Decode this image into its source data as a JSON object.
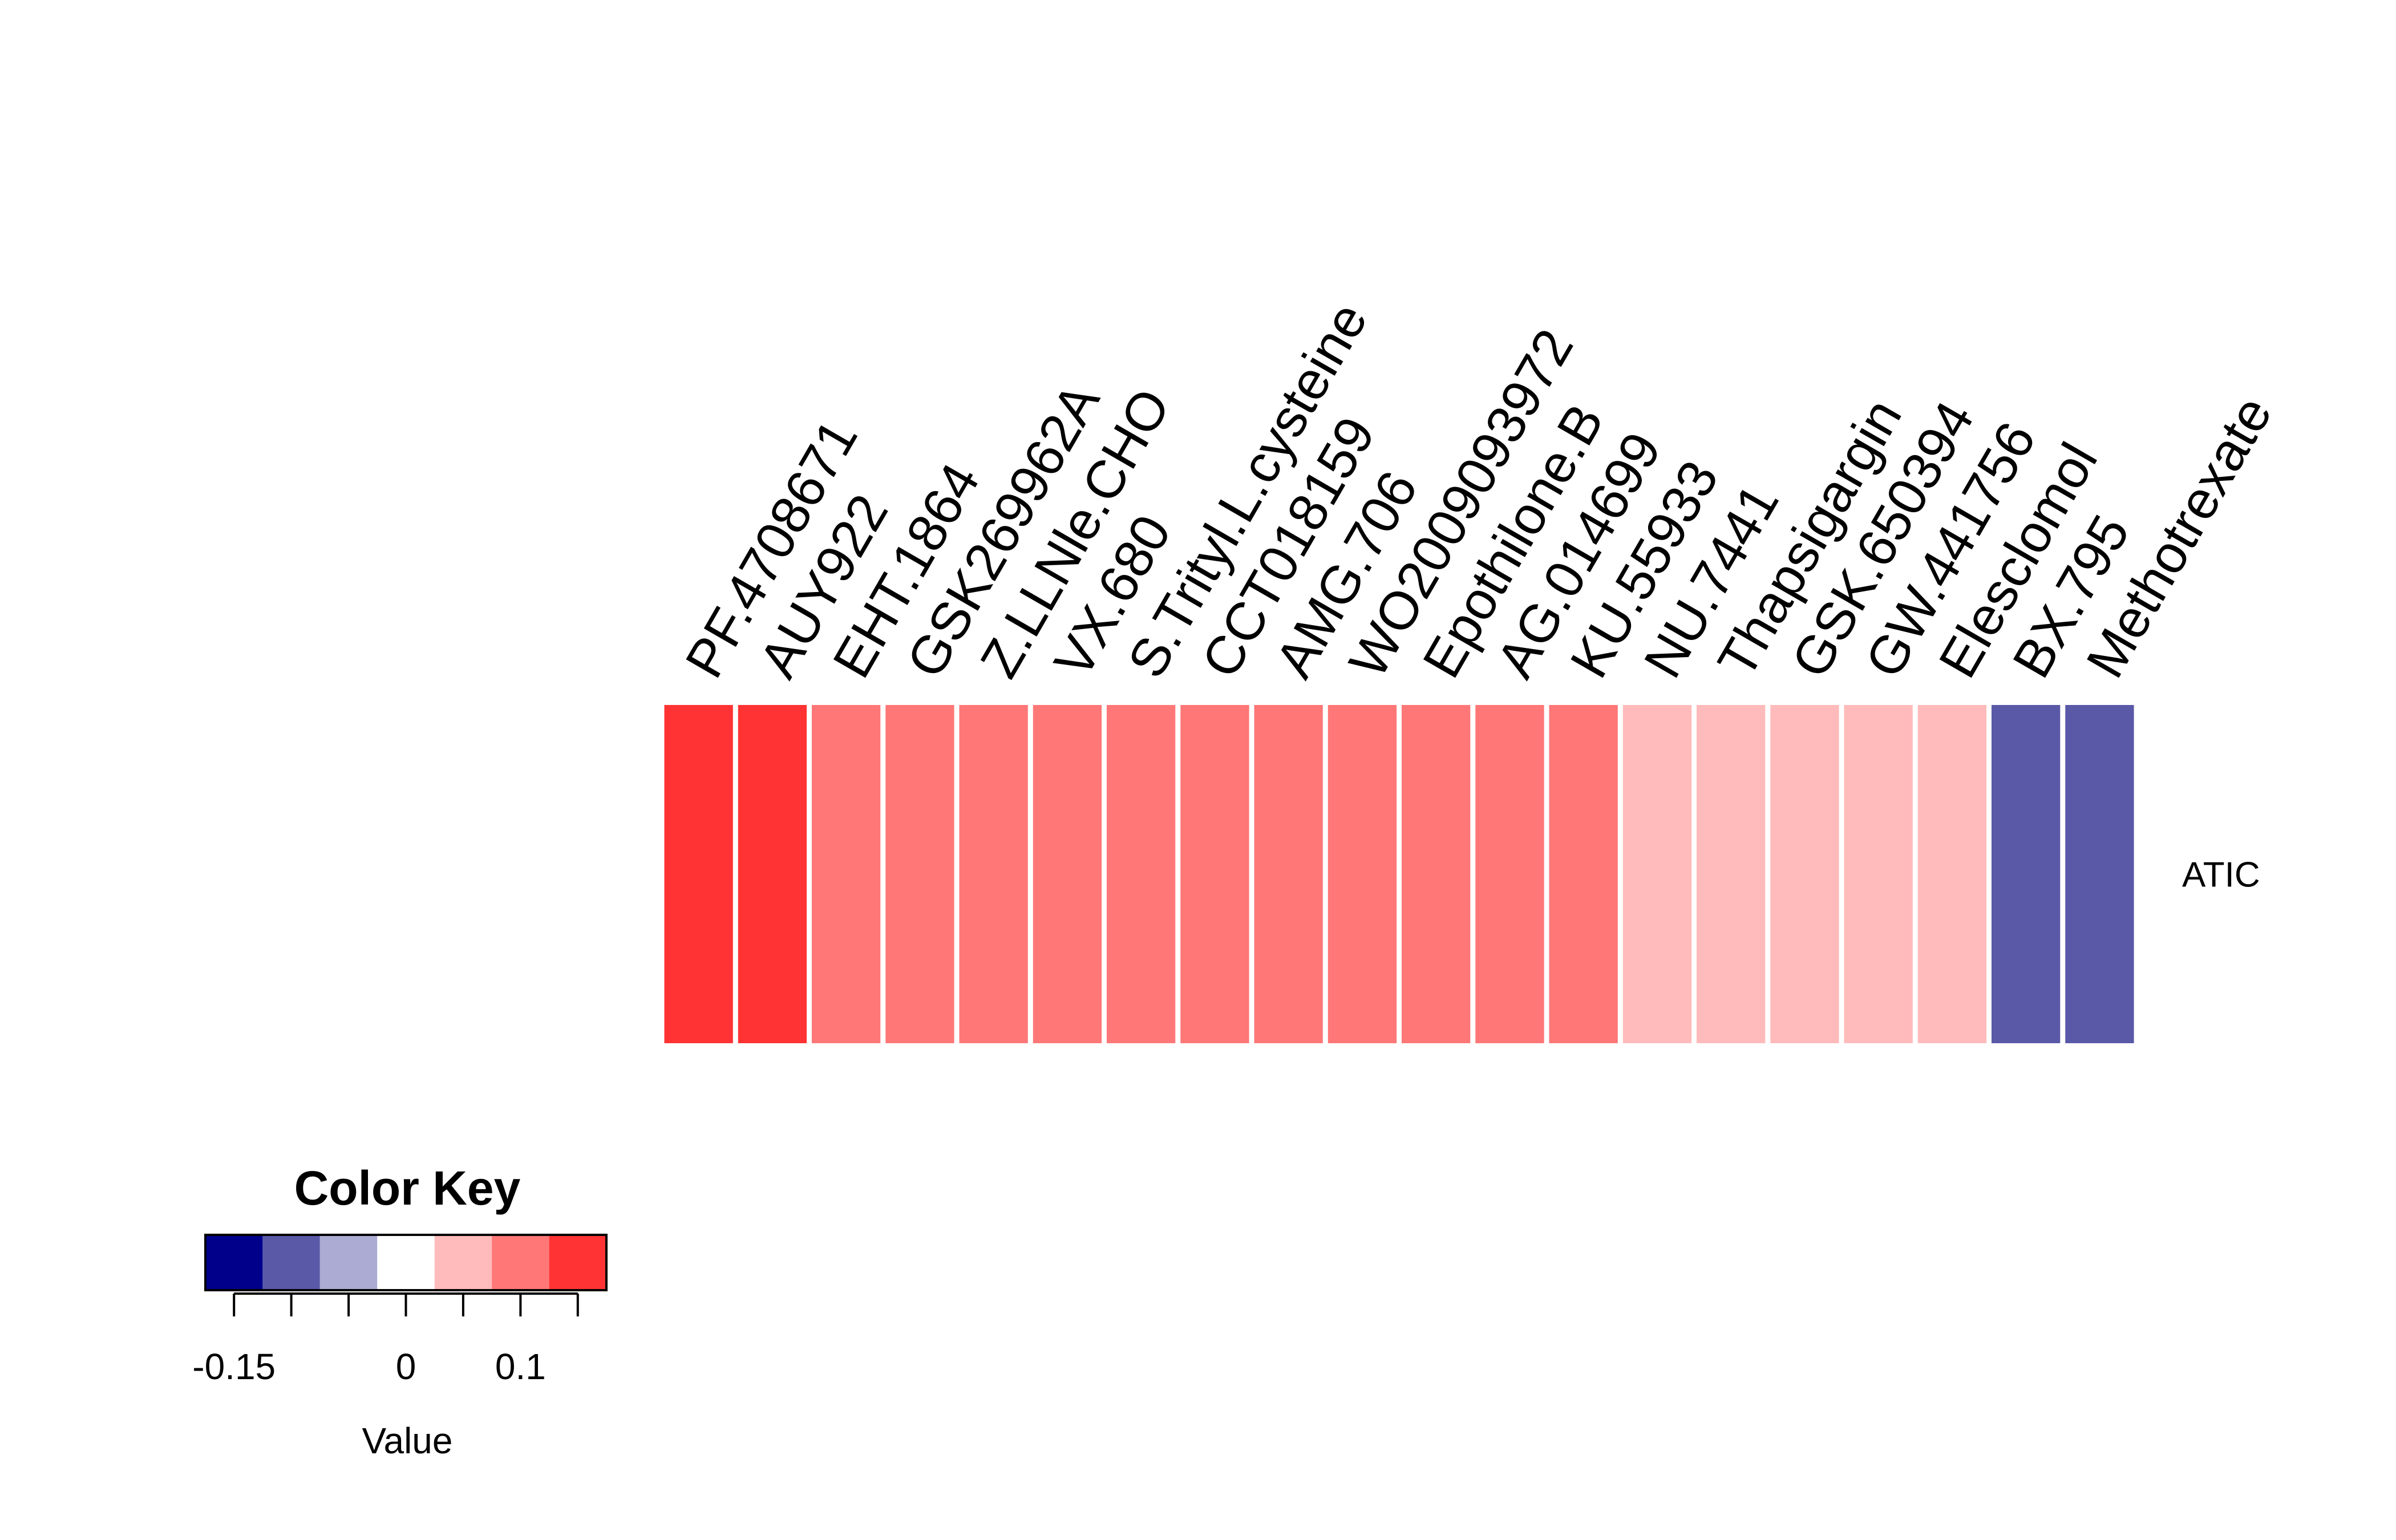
{
  "chart_data": {
    "type": "heatmap",
    "rows": [
      "ATIC"
    ],
    "columns": [
      "PF.4708671",
      "AUY922",
      "EHT.1864",
      "GSK269962A",
      "Z.LLNle.CHO",
      "VX.680",
      "S.Trityl.L.cysteine",
      "CCT018159",
      "AMG.706",
      "WO2009093972",
      "Epothilone.B",
      "AG.014699",
      "KU.55933",
      "NU.7441",
      "Thapsigargin",
      "GSK.650394",
      "GW.441756",
      "Elesclomol",
      "BX.795",
      "Methotrexate"
    ],
    "values": [
      [
        0.13,
        0.13,
        0.08,
        0.08,
        0.08,
        0.08,
        0.08,
        0.08,
        0.08,
        0.08,
        0.08,
        0.08,
        0.08,
        0.03,
        0.03,
        0.03,
        0.03,
        0.03,
        -0.12,
        -0.12
      ]
    ],
    "color_key": {
      "title": "Color Key",
      "xlabel": "Value",
      "breaks": [
        -0.175,
        -0.125,
        -0.075,
        -0.025,
        0.025,
        0.075,
        0.125,
        0.175
      ],
      "colors": [
        "#00008B",
        "#5959A8",
        "#ABABD4",
        "#FFFFFF",
        "#FFBBBB",
        "#FF7777",
        "#FF3333"
      ],
      "tick_values": [
        -0.15,
        -0.1,
        -0.05,
        0,
        0.05,
        0.1,
        0.15
      ],
      "tick_labels": [
        "-0.15",
        "0",
        "0.1"
      ],
      "tick_label_values": [
        -0.15,
        0,
        0.1
      ]
    }
  }
}
